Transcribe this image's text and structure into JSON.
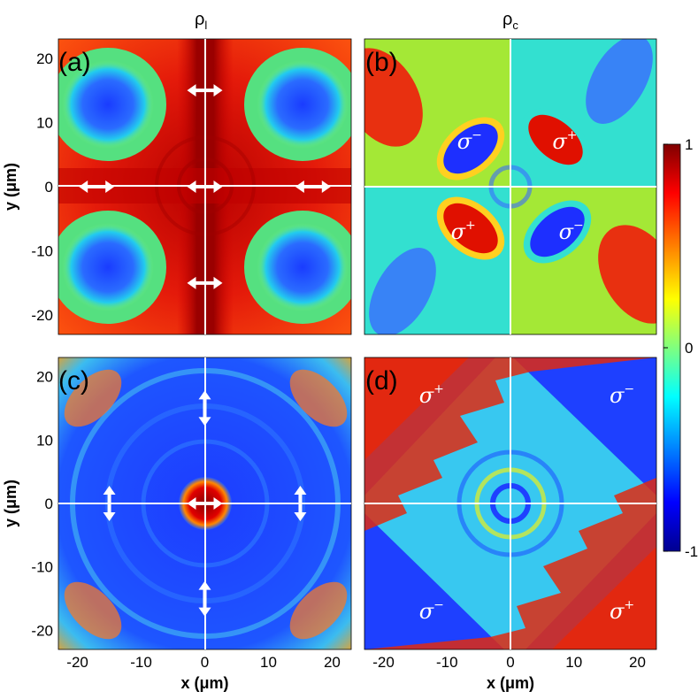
{
  "columns": {
    "left_title": "ρ",
    "left_sub": "l",
    "right_title": "ρ",
    "right_sub": "c"
  },
  "axes": {
    "xlabel": "x (μm)",
    "ylabel": "y (μm)",
    "x_ticks": [
      "-20",
      "-10",
      "0",
      "10",
      "20"
    ],
    "y_ticks": [
      "20",
      "10",
      "0",
      "-10",
      "-20"
    ]
  },
  "colorbar": {
    "ticks": [
      "1",
      "0",
      "-1"
    ],
    "range": [
      -1,
      1
    ],
    "colors": [
      "#00008f",
      "#0000ff",
      "#00ffff",
      "#7fff7f",
      "#ffff00",
      "#ff0000",
      "#800000"
    ]
  },
  "chart_data": [
    {
      "type": "heatmap",
      "panel": "(a)",
      "quantity": "ρl",
      "xlim": [
        -23,
        23
      ],
      "ylim": [
        -23,
        23
      ],
      "annotations": [
        {
          "symbol": "↔",
          "x": 0,
          "y": 15
        },
        {
          "symbol": "↔",
          "x": -17,
          "y": 0
        },
        {
          "symbol": "↔",
          "x": 0,
          "y": 0
        },
        {
          "symbol": "↔",
          "x": 17,
          "y": 0
        },
        {
          "symbol": "↔",
          "x": 0,
          "y": -15
        }
      ]
    },
    {
      "type": "heatmap",
      "panel": "(b)",
      "quantity": "ρc",
      "xlim": [
        -23,
        23
      ],
      "ylim": [
        -23,
        23
      ],
      "labels": [
        {
          "text": "σ",
          "sup": "−",
          "x": -7,
          "y": 7
        },
        {
          "text": "σ",
          "sup": "+",
          "x": 8,
          "y": 7
        },
        {
          "text": "σ",
          "sup": "+",
          "x": -8,
          "y": -7
        },
        {
          "text": "σ",
          "sup": "−",
          "x": 9,
          "y": -7
        }
      ]
    },
    {
      "type": "heatmap",
      "panel": "(c)",
      "quantity": "ρl",
      "xlim": [
        -23,
        23
      ],
      "ylim": [
        -23,
        23
      ],
      "annotations": [
        {
          "symbol": "↕",
          "x": 0,
          "y": 15
        },
        {
          "symbol": "↕",
          "x": -15,
          "y": 0
        },
        {
          "symbol": "↔",
          "x": 0,
          "y": 0
        },
        {
          "symbol": "↕",
          "x": 15,
          "y": 0
        },
        {
          "symbol": "↕",
          "x": 0,
          "y": -15
        }
      ]
    },
    {
      "type": "heatmap",
      "panel": "(d)",
      "quantity": "ρc",
      "xlim": [
        -23,
        23
      ],
      "ylim": [
        -23,
        23
      ],
      "labels": [
        {
          "text": "σ",
          "sup": "+",
          "x": -13,
          "y": 17
        },
        {
          "text": "σ",
          "sup": "−",
          "x": 17,
          "y": 17
        },
        {
          "text": "σ",
          "sup": "−",
          "x": -13,
          "y": -17
        },
        {
          "text": "σ",
          "sup": "+",
          "x": 17,
          "y": -17
        }
      ]
    }
  ]
}
